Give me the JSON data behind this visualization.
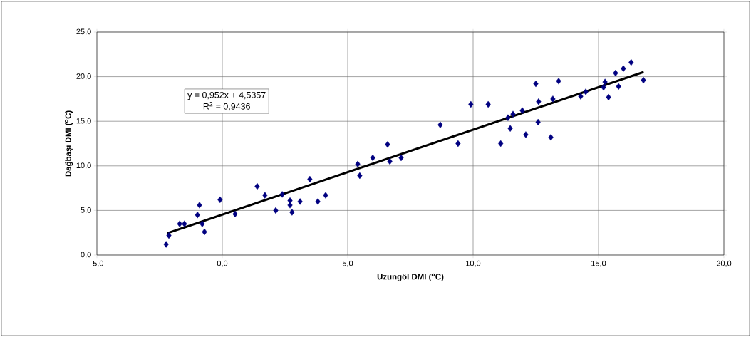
{
  "chart_data": {
    "type": "scatter",
    "xlabel": "Uzungöl DMI ($^{o}$C)",
    "ylabel": "Dağbaşı DMI ($^{o}$C)",
    "annotations": [
      "y = 0,952x + 4,5357",
      "R$^{2}$ = 0,9436"
    ],
    "series": [
      {
        "color": "#000080",
        "marker": "diamond",
        "x": [
          -2.24,
          -2.13,
          -1.7,
          -1.51,
          -0.91,
          -0.99,
          -0.8,
          -0.71,
          -0.09,
          0.51,
          1.39,
          1.7,
          2.13,
          2.39,
          2.7,
          2.7,
          2.78,
          3.1,
          3.49,
          3.81,
          4.12,
          5.4,
          5.48,
          6.0,
          6.59,
          6.68,
          7.13,
          8.69,
          9.4,
          9.91,
          10.6,
          11.1,
          11.48,
          11.39,
          11.59,
          11.96,
          12.1,
          12.59,
          12.61,
          12.5,
          13.41,
          13.18,
          13.1,
          14.29,
          14.49,
          15.26,
          15.2,
          15.4,
          15.68,
          15.8,
          15.99,
          16.3,
          16.79
        ],
        "values": [
          1.2,
          2.2,
          3.5,
          3.5,
          5.6,
          4.5,
          3.5,
          2.6,
          6.2,
          4.6,
          7.7,
          6.7,
          5.0,
          6.8,
          6.1,
          5.6,
          4.8,
          6.0,
          8.5,
          6.0,
          6.7,
          10.2,
          8.9,
          10.9,
          12.4,
          10.5,
          10.9,
          14.6,
          12.5,
          16.9,
          16.9,
          12.5,
          14.2,
          15.4,
          15.8,
          16.2,
          13.5,
          14.9,
          17.2,
          19.2,
          19.5,
          17.5,
          13.2,
          17.8,
          18.3,
          19.4,
          18.8,
          17.7,
          20.4,
          18.9,
          20.9,
          21.6,
          19.6
        ]
      },
      {
        "type": "line",
        "color": "#000000",
        "marker": "none",
        "line_style": "solid",
        "x": [
          -2.2,
          16.8
        ],
        "values": [
          2.44,
          20.53
        ]
      }
    ],
    "xlim": [
      -5,
      20
    ],
    "ylim": [
      0,
      25
    ],
    "xticks": [
      {
        "value": -5,
        "label": "-5,0"
      },
      {
        "value": 0,
        "label": "0,0"
      },
      {
        "value": 5,
        "label": "5,0"
      },
      {
        "value": 10,
        "label": "10,0"
      },
      {
        "value": 15,
        "label": "15,0"
      },
      {
        "value": 20,
        "label": "20,0"
      }
    ],
    "yticks": [
      {
        "value": 0,
        "label": "0,0"
      },
      {
        "value": 5,
        "label": "5,0"
      },
      {
        "value": 10,
        "label": "10,0"
      },
      {
        "value": 15,
        "label": "15,0"
      },
      {
        "value": 20,
        "label": "20,0"
      },
      {
        "value": 25,
        "label": "25,0"
      }
    ],
    "grid": true
  }
}
